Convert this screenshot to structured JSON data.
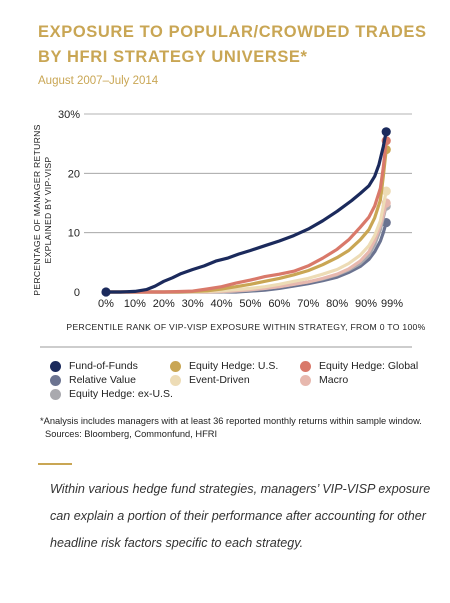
{
  "header": {
    "title": "EXPOSURE TO POPULAR/CROWDED TRADES BY HFRI STRATEGY UNIVERSE*",
    "subtitle": "August 2007–July 2014"
  },
  "chart_data": {
    "type": "line",
    "ylabel_line1": "PERCENTAGE OF MANAGER RETURNS",
    "ylabel_line2": "EXPLAINED BY VIP-VISP",
    "xlabel": "PERCENTILE RANK OF VIP-VISP EXPOSURE WITHIN STRATEGY, FROM 0 TO 100%",
    "ylim": [
      0,
      30
    ],
    "y_ticks": [
      "0",
      "10",
      "20",
      "30%"
    ],
    "x_ticks": [
      "0%",
      "10%",
      "20%",
      "30%",
      "40%",
      "50%",
      "60%",
      "70%",
      "80%",
      "90%",
      "99%"
    ],
    "x_tick_values": [
      0,
      10,
      20,
      30,
      40,
      50,
      60,
      70,
      80,
      90,
      99
    ],
    "x_range": [
      0,
      99
    ],
    "grid": "horizontal",
    "series": [
      {
        "name": "Fund-of-Funds",
        "color": "#1B2A5C",
        "x": [
          0,
          5,
          10,
          14,
          17,
          20,
          23,
          26,
          30,
          34,
          38,
          42,
          46,
          50,
          55,
          60,
          65,
          70,
          75,
          80,
          85,
          88,
          91,
          93,
          94.5,
          96,
          97
        ],
        "y": [
          0,
          0,
          0.1,
          0.4,
          1.0,
          1.8,
          2.4,
          3.1,
          3.8,
          4.4,
          5.2,
          5.7,
          6.4,
          7.0,
          7.8,
          8.6,
          9.5,
          10.6,
          12.0,
          13.6,
          15.4,
          16.6,
          17.9,
          19.5,
          21.5,
          24.5,
          27.0
        ]
      },
      {
        "name": "Equity Hedge: Global",
        "color": "#D9796A",
        "x": [
          0,
          20,
          30,
          35,
          40,
          45,
          50,
          55,
          60,
          65,
          70,
          75,
          80,
          84,
          88,
          91,
          93,
          95,
          96,
          97
        ],
        "y": [
          0,
          0,
          0.15,
          0.5,
          0.9,
          1.5,
          2.0,
          2.6,
          3.0,
          3.5,
          4.4,
          5.7,
          7.2,
          8.8,
          10.9,
          12.6,
          14.5,
          17.5,
          21.0,
          25.5
        ]
      },
      {
        "name": "Equity Hedge: U.S.",
        "color": "#C9A654",
        "x": [
          0,
          25,
          35,
          40,
          45,
          50,
          55,
          60,
          65,
          70,
          75,
          80,
          84,
          88,
          91,
          93,
          95,
          96,
          97
        ],
        "y": [
          0,
          0,
          0.2,
          0.5,
          0.9,
          1.3,
          1.8,
          2.3,
          2.9,
          3.6,
          4.6,
          5.8,
          7.0,
          8.8,
          10.5,
          12.5,
          15.5,
          19.5,
          24.0
        ]
      },
      {
        "name": "Event-Driven",
        "color": "#EDDCB6",
        "x": [
          0,
          30,
          40,
          50,
          55,
          60,
          65,
          70,
          75,
          80,
          84,
          88,
          91,
          93,
          95,
          96,
          97
        ],
        "y": [
          0,
          0,
          0.2,
          0.6,
          0.9,
          1.3,
          1.8,
          2.3,
          3.0,
          3.8,
          4.8,
          6.2,
          7.8,
          9.5,
          12.0,
          14.5,
          17.0
        ]
      },
      {
        "name": "Macro",
        "color": "#E7B8AE",
        "x": [
          0,
          35,
          45,
          55,
          60,
          65,
          70,
          75,
          80,
          84,
          88,
          91,
          93,
          95,
          96,
          97
        ],
        "y": [
          0,
          0,
          0.2,
          0.6,
          0.9,
          1.3,
          1.7,
          2.3,
          3.0,
          3.9,
          5.2,
          6.8,
          8.7,
          11.2,
          13.0,
          15.0
        ]
      },
      {
        "name": "Equity Hedge: ex-U.S.",
        "color": "#A9A9AE",
        "x": [
          0,
          40,
          50,
          55,
          60,
          65,
          70,
          75,
          80,
          84,
          88,
          91,
          93,
          95,
          96,
          97
        ],
        "y": [
          0,
          0,
          0.3,
          0.6,
          0.9,
          1.3,
          1.7,
          2.2,
          2.9,
          3.7,
          4.8,
          6.2,
          8.0,
          10.5,
          12.5,
          14.5
        ]
      },
      {
        "name": "Relative Value",
        "color": "#6B7390",
        "x": [
          0,
          45,
          55,
          60,
          65,
          70,
          75,
          80,
          84,
          88,
          91,
          93,
          95,
          96,
          97
        ],
        "y": [
          0,
          0,
          0.3,
          0.6,
          1.0,
          1.4,
          1.9,
          2.5,
          3.3,
          4.3,
          5.5,
          6.8,
          8.6,
          10.0,
          11.7
        ]
      }
    ]
  },
  "legend": [
    {
      "label": "Fund-of-Funds",
      "color": "#1B2A5C"
    },
    {
      "label": "Equity Hedge: U.S.",
      "color": "#C9A654"
    },
    {
      "label": "Equity Hedge: Global",
      "color": "#D9796A"
    },
    {
      "label": "Relative Value",
      "color": "#6B7390"
    },
    {
      "label": "Event-Driven",
      "color": "#EDDCB6"
    },
    {
      "label": "Macro",
      "color": "#E7B8AE"
    },
    {
      "label": "Equity Hedge: ex-U.S.",
      "color": "#A9A9AE"
    }
  ],
  "notes": {
    "footnote": "*Analysis includes managers with at least 36 reported monthly returns within sample window.",
    "sources": "Sources: Bloomberg, Commonfund, HFRI"
  },
  "callout": {
    "text": "Within various hedge fund strategies, managers’ VIP-VISP exposure can explain a portion of their performance after accounting for other headline risk factors specific to each strategy."
  }
}
